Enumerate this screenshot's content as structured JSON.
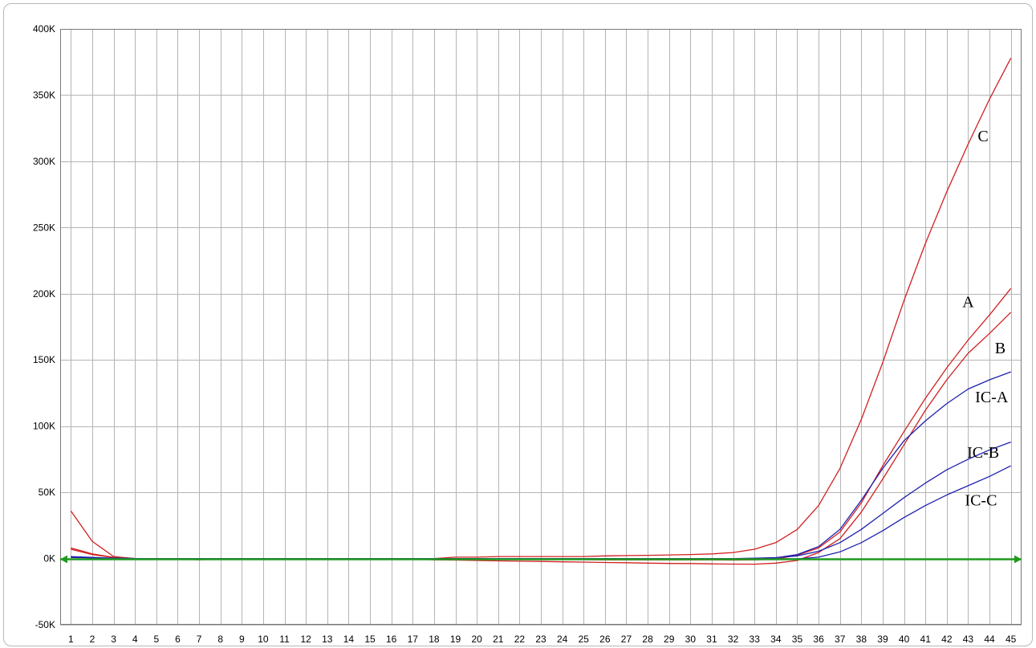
{
  "chart_data": {
    "type": "line",
    "title": "",
    "xlabel": "",
    "ylabel": "",
    "x": [
      1,
      2,
      3,
      4,
      5,
      6,
      7,
      8,
      9,
      10,
      11,
      12,
      13,
      14,
      15,
      16,
      17,
      18,
      19,
      20,
      21,
      22,
      23,
      24,
      25,
      26,
      27,
      28,
      29,
      30,
      31,
      32,
      33,
      34,
      35,
      36,
      37,
      38,
      39,
      40,
      41,
      42,
      43,
      44,
      45
    ],
    "x_tick_labels": [
      "1",
      "2",
      "3",
      "4",
      "5",
      "6",
      "7",
      "8",
      "9",
      "10",
      "11",
      "12",
      "13",
      "14",
      "15",
      "16",
      "17",
      "18",
      "19",
      "20",
      "21",
      "22",
      "23",
      "24",
      "25",
      "26",
      "27",
      "28",
      "29",
      "30",
      "31",
      "32",
      "33",
      "34",
      "35",
      "36",
      "37",
      "38",
      "39",
      "40",
      "41",
      "42",
      "43",
      "44",
      "45"
    ],
    "y_tick_labels": [
      "-50K",
      "0K",
      "50K",
      "100K",
      "150K",
      "200K",
      "250K",
      "300K",
      "350K",
      "400K"
    ],
    "y_ticks": [
      -50000,
      0,
      50000,
      100000,
      150000,
      200000,
      250000,
      300000,
      350000,
      400000
    ],
    "xlim": [
      0.5,
      45.5
    ],
    "ylim": [
      -50000,
      400000
    ],
    "grid": true,
    "threshold": {
      "value": 0,
      "color": "#1f9a1f"
    },
    "series": [
      {
        "name": "C",
        "color": "#d02020",
        "label_at": [
          43.7,
          315000
        ],
        "values": [
          36000,
          13000,
          1500,
          0,
          0,
          0,
          -1000,
          0,
          0,
          0,
          0,
          0,
          0,
          0,
          0,
          0,
          0,
          0,
          1000,
          1000,
          1500,
          1500,
          1500,
          1500,
          1500,
          2000,
          2200,
          2400,
          2700,
          3000,
          3500,
          4500,
          7000,
          12000,
          22000,
          40000,
          68000,
          105000,
          148000,
          195000,
          238000,
          277000,
          313000,
          347000,
          378000
        ]
      },
      {
        "name": "A",
        "color": "#d02020",
        "label_at": [
          43.0,
          190000
        ],
        "values": [
          8000,
          3500,
          800,
          0,
          0,
          0,
          -500,
          0,
          0,
          0,
          0,
          0,
          0,
          0,
          0,
          0,
          0,
          -500,
          -500,
          -500,
          -500,
          -500,
          -800,
          -800,
          -800,
          -1000,
          -1000,
          -1000,
          -1000,
          -1000,
          -1000,
          -1200,
          -1000,
          -500,
          2500,
          8000,
          20000,
          42000,
          70000,
          96000,
          121000,
          144000,
          165000,
          184000,
          204000
        ]
      },
      {
        "name": "B",
        "color": "#d02020",
        "label_at": [
          44.5,
          155000
        ],
        "values": [
          7000,
          3000,
          700,
          0,
          0,
          0,
          -500,
          0,
          0,
          0,
          0,
          0,
          0,
          0,
          0,
          0,
          0,
          -1000,
          -1200,
          -1500,
          -1800,
          -2000,
          -2200,
          -2500,
          -2700,
          -3000,
          -3200,
          -3500,
          -3700,
          -3800,
          -4000,
          -4200,
          -4300,
          -3500,
          -1500,
          4500,
          15000,
          35000,
          60000,
          86000,
          112000,
          135000,
          155000,
          170000,
          186000
        ]
      },
      {
        "name": "IC-A",
        "color": "#2020b0",
        "label_at": [
          44.1,
          118000
        ],
        "values": [
          1500,
          800,
          200,
          0,
          0,
          0,
          0,
          0,
          0,
          0,
          0,
          0,
          0,
          0,
          0,
          0,
          0,
          0,
          0,
          0,
          0,
          0,
          0,
          0,
          0,
          -500,
          -500,
          -500,
          -500,
          -500,
          -500,
          -500,
          -300,
          500,
          3000,
          9000,
          22000,
          44000,
          68000,
          89000,
          104000,
          117000,
          128000,
          135000,
          141000
        ]
      },
      {
        "name": "IC-B",
        "color": "#2020b0",
        "label_at": [
          43.7,
          76000
        ],
        "values": [
          1000,
          500,
          100,
          0,
          0,
          0,
          0,
          0,
          0,
          0,
          0,
          0,
          0,
          0,
          0,
          0,
          0,
          0,
          0,
          0,
          0,
          0,
          0,
          0,
          0,
          0,
          0,
          0,
          0,
          0,
          0,
          0,
          200,
          700,
          2000,
          5500,
          12000,
          22000,
          34000,
          46000,
          57000,
          67000,
          75000,
          82000,
          88000
        ]
      },
      {
        "name": "IC-C",
        "color": "#2020b0",
        "label_at": [
          43.6,
          40000
        ],
        "values": [
          800,
          400,
          100,
          0,
          0,
          0,
          0,
          0,
          0,
          0,
          0,
          0,
          0,
          0,
          0,
          0,
          0,
          0,
          0,
          0,
          0,
          0,
          0,
          0,
          0,
          0,
          0,
          0,
          0,
          0,
          0,
          0,
          0,
          -200,
          -200,
          1000,
          5000,
          12000,
          21000,
          31000,
          40000,
          48000,
          55000,
          62000,
          70000
        ]
      }
    ]
  }
}
